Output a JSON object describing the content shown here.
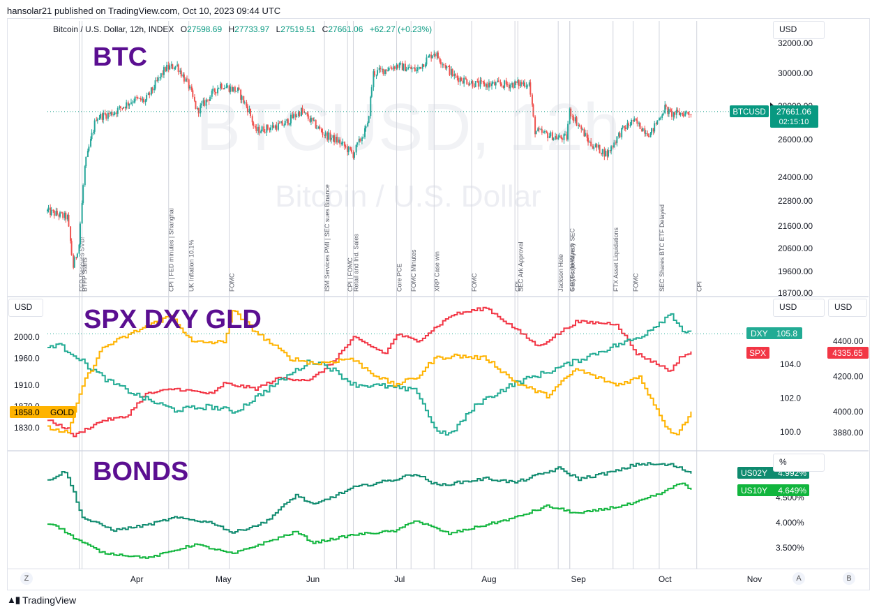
{
  "publish_line": "hansolar21 published on TradingView.com, Oct 10, 2023 09:44 UTC",
  "symbol_line": {
    "name": "Bitcoin / U.S. Dollar, 12h, INDEX",
    "o_label": "O",
    "o": "27598.69",
    "h_label": "H",
    "h": "27733.97",
    "l_label": "L",
    "l": "27519.51",
    "c_label": "C",
    "c": "27661.06",
    "change": "+62.27 (+0.23%)"
  },
  "branding": "TradingView",
  "buttons": {
    "z": "Z",
    "a": "A",
    "b": "B"
  },
  "colors": {
    "up": "#26a69a",
    "down": "#ef5350",
    "btc_label": "#089981",
    "spx": "#f23645",
    "dxy": "#22ab94",
    "gold": "#ffb300",
    "us02y": "#0e8a6e",
    "us10y": "#11b53d",
    "title": "#5b0f91",
    "gold_tag_text": "#000000"
  },
  "chart_data": [
    {
      "type": "candlestick",
      "title": "BTC",
      "watermark_1": "BTCUSD, 12h",
      "watermark_2": "Bitcoin / U.S. Dollar",
      "unit": "USD",
      "y_axis_scale": "log",
      "y_ticks": [
        "32000.00",
        "30000.00",
        "28000.00",
        "26000.00",
        "24000.00",
        "22800.00",
        "21600.00",
        "20600.00",
        "19600.00",
        "18700.00"
      ],
      "last_price_label": "BTCUSD",
      "last_price": "27661.06",
      "countdown": "02:15:10",
      "x_range": [
        "2023-03-01",
        "2023-11-05"
      ],
      "x_ticks": [
        "Apr",
        "May",
        "Jun",
        "Jul",
        "Aug",
        "Sep",
        "Oct",
        "Nov"
      ],
      "series_keypoints": [
        [
          "2023-03-01",
          22300
        ],
        [
          "2023-03-08",
          22000
        ],
        [
          "2023-03-10",
          19800
        ],
        [
          "2023-03-12",
          20800
        ],
        [
          "2023-03-14",
          24500
        ],
        [
          "2023-03-18",
          27300
        ],
        [
          "2023-03-24",
          27600
        ],
        [
          "2023-03-31",
          28400
        ],
        [
          "2023-04-04",
          28300
        ],
        [
          "2023-04-11",
          30300
        ],
        [
          "2023-04-15",
          30500
        ],
        [
          "2023-04-19",
          29200
        ],
        [
          "2023-04-22",
          27700
        ],
        [
          "2023-04-26",
          28500
        ],
        [
          "2023-04-30",
          29300
        ],
        [
          "2023-05-06",
          28900
        ],
        [
          "2023-05-10",
          27700
        ],
        [
          "2023-05-12",
          26500
        ],
        [
          "2023-05-22",
          26900
        ],
        [
          "2023-05-28",
          27700
        ],
        [
          "2023-06-05",
          26300
        ],
        [
          "2023-06-10",
          25900
        ],
        [
          "2023-06-15",
          25200
        ],
        [
          "2023-06-20",
          26800
        ],
        [
          "2023-06-22",
          30000
        ],
        [
          "2023-06-30",
          30500
        ],
        [
          "2023-07-07",
          30200
        ],
        [
          "2023-07-13",
          31400
        ],
        [
          "2023-07-20",
          29800
        ],
        [
          "2023-07-28",
          29300
        ],
        [
          "2023-08-08",
          29300
        ],
        [
          "2023-08-15",
          29400
        ],
        [
          "2023-08-17",
          26500
        ],
        [
          "2023-08-25",
          26100
        ],
        [
          "2023-08-28",
          26100
        ],
        [
          "2023-08-29",
          27700
        ],
        [
          "2023-09-05",
          25800
        ],
        [
          "2023-09-11",
          25200
        ],
        [
          "2023-09-16",
          26500
        ],
        [
          "2023-09-20",
          27100
        ],
        [
          "2023-09-26",
          26300
        ],
        [
          "2023-10-01",
          27900
        ],
        [
          "2023-10-03",
          27500
        ],
        [
          "2023-10-10",
          27600
        ]
      ],
      "event_labels": [
        "FED Rescues SVB!",
        "BTFP Starts",
        "CPI | FED minutes | Shanghai",
        "UK Inflation 10.1%",
        "FOMC",
        "ISM Services PMI | SEC sues Binance",
        "CPI | FOMC",
        "Retail and Ind. Sales",
        "Core PCE",
        "FOMC Minutes",
        "XRP Case win",
        "FOMC",
        "CPI",
        "SEC Ark Approval",
        "Jackson Hole",
        "Grayscale Wins v SEC",
        "6 ETFs (delayed)",
        "FTX Asset Liquidations",
        "FOMC",
        "SEC Shares BTC ETF Delayed",
        "CPI"
      ],
      "event_dates": [
        "2023-03-12",
        "2023-03-13",
        "2023-04-12",
        "2023-04-19",
        "2023-05-03",
        "2023-06-05",
        "2023-06-13",
        "2023-06-15",
        "2023-06-30",
        "2023-07-05",
        "2023-07-13",
        "2023-07-26",
        "2023-08-10",
        "2023-08-11",
        "2023-08-25",
        "2023-08-29",
        "2023-08-29",
        "2023-09-13",
        "2023-09-20",
        "2023-09-29",
        "2023-10-12"
      ]
    },
    {
      "type": "line",
      "title": "SPX DXY GLD",
      "unit_left": "USD",
      "unit_right_inner": "USD",
      "unit_right_outer": "USD",
      "left_ticks": [
        "2000.0",
        "1960.0",
        "1910.0",
        "1870.0",
        "1830.0"
      ],
      "inner_right_ticks": [
        "104.0",
        "102.0",
        "100.0"
      ],
      "outer_right_ticks": [
        "4400.00",
        "4200.00",
        "4000.00",
        "3880.00"
      ],
      "series": [
        {
          "name": "SPX",
          "last": "4335.65",
          "axis": "outer_right",
          "keypoints": [
            [
              "2023-03-01",
              3950
            ],
            [
              "2023-03-08",
              3900
            ],
            [
              "2023-03-10",
              3860
            ],
            [
              "2023-03-13",
              3890
            ],
            [
              "2023-03-20",
              3950
            ],
            [
              "2023-03-28",
              3970
            ],
            [
              "2023-04-04",
              4100
            ],
            [
              "2023-04-14",
              4130
            ],
            [
              "2023-04-27",
              4100
            ],
            [
              "2023-05-01",
              4160
            ],
            [
              "2023-05-12",
              4130
            ],
            [
              "2023-05-20",
              4190
            ],
            [
              "2023-05-31",
              4180
            ],
            [
              "2023-06-07",
              4270
            ],
            [
              "2023-06-15",
              4420
            ],
            [
              "2023-06-26",
              4330
            ],
            [
              "2023-06-30",
              4440
            ],
            [
              "2023-07-07",
              4400
            ],
            [
              "2023-07-19",
              4550
            ],
            [
              "2023-07-31",
              4590
            ],
            [
              "2023-08-10",
              4470
            ],
            [
              "2023-08-18",
              4370
            ],
            [
              "2023-08-31",
              4510
            ],
            [
              "2023-09-14",
              4500
            ],
            [
              "2023-09-21",
              4330
            ],
            [
              "2023-10-03",
              4230
            ],
            [
              "2023-10-06",
              4310
            ],
            [
              "2023-10-10",
              4335
            ]
          ]
        },
        {
          "name": "DXY",
          "last": "105.8",
          "axis": "inner_right",
          "keypoints": [
            [
              "2023-03-01",
              105.0
            ],
            [
              "2023-03-04",
              105.2
            ],
            [
              "2023-03-10",
              104.6
            ],
            [
              "2023-03-14",
              104.0
            ],
            [
              "2023-03-22",
              103.0
            ],
            [
              "2023-04-03",
              102.0
            ],
            [
              "2023-04-14",
              101.3
            ],
            [
              "2023-04-26",
              101.5
            ],
            [
              "2023-05-05",
              101.2
            ],
            [
              "2023-05-15",
              102.4
            ],
            [
              "2023-05-31",
              104.2
            ],
            [
              "2023-06-05",
              104.0
            ],
            [
              "2023-06-15",
              102.8
            ],
            [
              "2023-06-26",
              102.7
            ],
            [
              "2023-07-07",
              102.4
            ],
            [
              "2023-07-13",
              100.2
            ],
            [
              "2023-07-18",
              99.8
            ],
            [
              "2023-07-28",
              101.7
            ],
            [
              "2023-08-10",
              102.9
            ],
            [
              "2023-08-22",
              103.6
            ],
            [
              "2023-08-31",
              104.2
            ],
            [
              "2023-09-12",
              105.0
            ],
            [
              "2023-09-22",
              105.6
            ],
            [
              "2023-10-03",
              107.0
            ],
            [
              "2023-10-07",
              106.0
            ],
            [
              "2023-10-10",
              105.8
            ]
          ]
        },
        {
          "name": "GOLD",
          "last": "1858.0",
          "axis": "left",
          "keypoints": [
            [
              "2023-03-01",
              1830
            ],
            [
              "2023-03-08",
              1820
            ],
            [
              "2023-03-13",
              1910
            ],
            [
              "2023-03-20",
              1980
            ],
            [
              "2023-04-04",
              2020
            ],
            [
              "2023-04-13",
              2040
            ],
            [
              "2023-04-20",
              1990
            ],
            [
              "2023-05-01",
              1990
            ],
            [
              "2023-05-04",
              2050
            ],
            [
              "2023-05-12",
              2010
            ],
            [
              "2023-05-24",
              1960
            ],
            [
              "2023-06-02",
              1950
            ],
            [
              "2023-06-14",
              1960
            ],
            [
              "2023-06-22",
              1930
            ],
            [
              "2023-06-29",
              1910
            ],
            [
              "2023-07-07",
              1925
            ],
            [
              "2023-07-13",
              1960
            ],
            [
              "2023-07-20",
              1965
            ],
            [
              "2023-07-31",
              1960
            ],
            [
              "2023-08-10",
              1915
            ],
            [
              "2023-08-21",
              1890
            ],
            [
              "2023-08-31",
              1940
            ],
            [
              "2023-09-14",
              1910
            ],
            [
              "2023-09-22",
              1925
            ],
            [
              "2023-10-02",
              1825
            ],
            [
              "2023-10-05",
              1820
            ],
            [
              "2023-10-10",
              1858
            ]
          ]
        }
      ]
    },
    {
      "type": "line",
      "title": "BONDS",
      "unit": "%",
      "y_ticks": [
        "4.500%",
        "4.000%",
        "3.500%"
      ],
      "series": [
        {
          "name": "US02Y",
          "last": "4.992%",
          "keypoints": [
            [
              "2023-03-01",
              4.85
            ],
            [
              "2023-03-07",
              5.02
            ],
            [
              "2023-03-10",
              4.6
            ],
            [
              "2023-03-13",
              4.1
            ],
            [
              "2023-03-24",
              3.85
            ],
            [
              "2023-04-04",
              3.95
            ],
            [
              "2023-04-14",
              4.1
            ],
            [
              "2023-04-27",
              4.0
            ],
            [
              "2023-05-04",
              3.8
            ],
            [
              "2023-05-15",
              4.0
            ],
            [
              "2023-05-26",
              4.55
            ],
            [
              "2023-06-01",
              4.35
            ],
            [
              "2023-06-15",
              4.7
            ],
            [
              "2023-06-30",
              4.87
            ],
            [
              "2023-07-06",
              4.98
            ],
            [
              "2023-07-14",
              4.74
            ],
            [
              "2023-07-31",
              4.88
            ],
            [
              "2023-08-10",
              4.8
            ],
            [
              "2023-08-25",
              5.08
            ],
            [
              "2023-09-01",
              4.87
            ],
            [
              "2023-09-15",
              5.04
            ],
            [
              "2023-09-21",
              5.17
            ],
            [
              "2023-10-03",
              5.15
            ],
            [
              "2023-10-10",
              4.99
            ]
          ]
        },
        {
          "name": "US10Y",
          "last": "4.649%",
          "keypoints": [
            [
              "2023-03-01",
              3.97
            ],
            [
              "2023-03-03",
              3.98
            ],
            [
              "2023-03-10",
              3.7
            ],
            [
              "2023-03-20",
              3.4
            ],
            [
              "2023-04-05",
              3.3
            ],
            [
              "2023-04-21",
              3.57
            ],
            [
              "2023-05-04",
              3.38
            ],
            [
              "2023-05-26",
              3.82
            ],
            [
              "2023-06-01",
              3.6
            ],
            [
              "2023-06-15",
              3.76
            ],
            [
              "2023-06-30",
              3.84
            ],
            [
              "2023-07-06",
              4.05
            ],
            [
              "2023-07-18",
              3.78
            ],
            [
              "2023-07-31",
              3.96
            ],
            [
              "2023-08-10",
              4.1
            ],
            [
              "2023-08-21",
              4.33
            ],
            [
              "2023-09-01",
              4.18
            ],
            [
              "2023-09-20",
              4.38
            ],
            [
              "2023-10-01",
              4.62
            ],
            [
              "2023-10-06",
              4.8
            ],
            [
              "2023-10-10",
              4.649
            ]
          ]
        }
      ]
    }
  ]
}
